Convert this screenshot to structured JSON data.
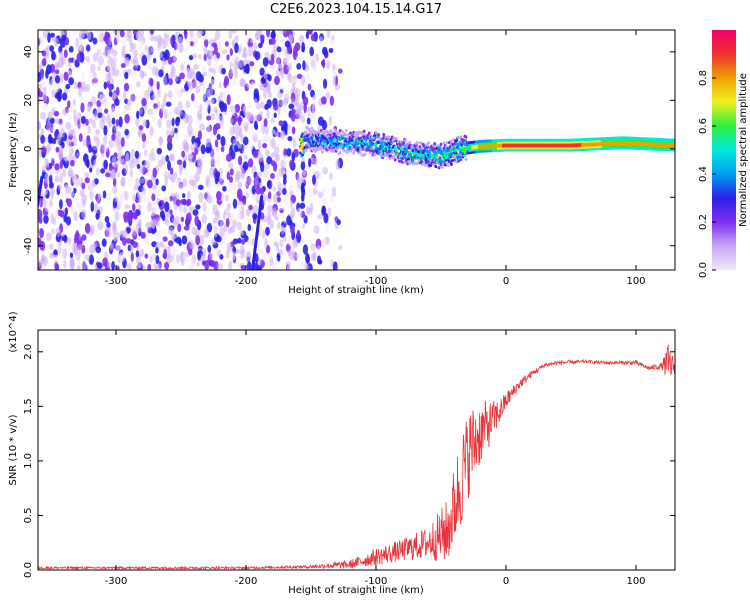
{
  "title": "C2E6.2023.104.15.14.G17",
  "colors": {
    "snr_line": "#e8343a",
    "axis": "#000000",
    "colorbar": [
      "#f2e8fb",
      "#c9a6f5",
      "#7f2ff0",
      "#2a1fe8",
      "#00a0f0",
      "#00e8e0",
      "#2cf03a",
      "#f0f020",
      "#f0a000",
      "#f03030",
      "#f0006a"
    ]
  },
  "chart_data": [
    {
      "type": "heatmap",
      "title": "C2E6.2023.104.15.14.G17",
      "xlabel": "Height of straight line (km)",
      "ylabel": "Frequency (Hz)",
      "xlim": [
        -360,
        130
      ],
      "ylim": [
        -50,
        49
      ],
      "xticks": [
        -300,
        -200,
        -100,
        0,
        100
      ],
      "yticks": [
        -40,
        -20,
        0,
        20,
        40
      ],
      "colorbar": {
        "label": "Normalized spectral amplitude",
        "range": [
          0,
          1
        ],
        "ticks": [
          0.0,
          0.2,
          0.4,
          0.6,
          0.8
        ],
        "tick_labels": [
          "0.0",
          "0.2",
          "0.4",
          "0.6",
          "0.8"
        ]
      },
      "ridge": {
        "description_points": [
          {
            "x": -155,
            "freq": 4,
            "amp": 0.45
          },
          {
            "x": -130,
            "freq": 3,
            "amp": 0.5
          },
          {
            "x": -100,
            "freq": 2,
            "amp": 0.55
          },
          {
            "x": -70,
            "freq": -2,
            "amp": 0.55
          },
          {
            "x": -50,
            "freq": -3,
            "amp": 0.6
          },
          {
            "x": -35,
            "freq": 0,
            "amp": 0.6
          },
          {
            "x": -20,
            "freq": 1,
            "amp": 0.85
          },
          {
            "x": 0,
            "freq": 1.5,
            "amp": 0.95
          },
          {
            "x": 50,
            "freq": 1.5,
            "amp": 0.95
          },
          {
            "x": 90,
            "freq": 2.5,
            "amp": 0.9
          },
          {
            "x": 130,
            "freq": 1.5,
            "amp": 0.9
          }
        ]
      }
    },
    {
      "type": "line",
      "xlabel": "Height of straight line (km)",
      "ylabel": "SNR (10 * v/v)",
      "y_multiplier_label": "(x10^4)",
      "xlim": [
        -360,
        130
      ],
      "ylim": [
        0,
        2.2
      ],
      "xticks": [
        -300,
        -200,
        -100,
        0,
        100
      ],
      "yticks": [
        0.0,
        0.5,
        1.0,
        1.5,
        2.0
      ],
      "ytick_labels": [
        "0.0",
        "0.5",
        "1.0",
        "1.5",
        "2.0"
      ],
      "series": [
        {
          "x": [
            -360,
            -300,
            -250,
            -200,
            -150,
            -120,
            -100,
            -80,
            -60,
            -45,
            -35,
            -28,
            -20,
            -12,
            -5,
            0,
            10,
            20,
            30,
            40,
            60,
            80,
            100,
            110,
            120,
            125,
            130
          ],
          "y": [
            0.02,
            0.02,
            0.02,
            0.02,
            0.03,
            0.05,
            0.12,
            0.18,
            0.25,
            0.35,
            0.8,
            1.1,
            1.25,
            1.35,
            1.45,
            1.55,
            1.7,
            1.8,
            1.88,
            1.9,
            1.91,
            1.9,
            1.9,
            1.85,
            1.87,
            1.89,
            1.86
          ],
          "noise": [
            0.01,
            0.01,
            0.01,
            0.01,
            0.015,
            0.04,
            0.08,
            0.1,
            0.15,
            0.3,
            0.45,
            0.4,
            0.3,
            0.2,
            0.12,
            0.08,
            0.05,
            0.03,
            0.02,
            0.02,
            0.015,
            0.015,
            0.02,
            0.02,
            0.03,
            0.2,
            0.05
          ]
        }
      ]
    }
  ]
}
